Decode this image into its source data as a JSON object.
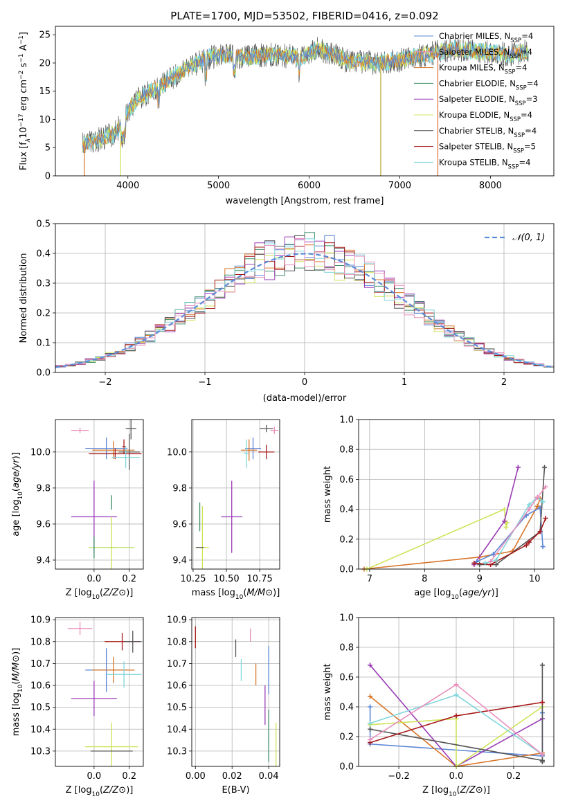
{
  "title": "PLATE=1700, MJD=53502, FIBERID=0416, z=0.092",
  "colors": [
    "#5b86d6",
    "#d8762a",
    "#8b6a1c",
    "#3f8f68",
    "#9a3bb5",
    "#cfe35a",
    "#555555",
    "#a61818",
    "#7fd6dc",
    "#e88fbc",
    "#b5e05a"
  ],
  "chart_data": [
    {
      "id": "spectrum",
      "type": "line",
      "title": "PLATE=1700, MJD=53502, FIBERID=0416, z=0.092",
      "xlabel": "wavelength [Angstrom, rest frame]",
      "ylabel": "Flux [f$_\\lambda$10$^{-17}$ erg cm$^{-2}$ s$^{-1}$ A$^{-1}$]",
      "ylabel_parts": [
        "Flux [f",
        "λ",
        "10",
        "−17",
        " erg cm",
        "−2",
        " s",
        "−1",
        " A",
        "−1",
        "]"
      ],
      "xlim": [
        3200,
        8700
      ],
      "ylim": [
        0,
        26.5
      ],
      "xticks": [
        "4000",
        "5000",
        "6000",
        "7000",
        "8000"
      ],
      "xtick_values": [
        4000,
        5000,
        6000,
        7000,
        8000
      ],
      "yticks": [
        "0",
        "5",
        "10",
        "15",
        "20",
        "25"
      ],
      "ytick_values": [
        0,
        5,
        10,
        15,
        20,
        25
      ],
      "continuum": [
        [
          3500,
          5.5
        ],
        [
          3700,
          6.5
        ],
        [
          3850,
          7.5
        ],
        [
          3950,
          9.5
        ],
        [
          4000,
          11.5
        ],
        [
          4100,
          13.5
        ],
        [
          4300,
          15.5
        ],
        [
          4500,
          17.5
        ],
        [
          4700,
          19.5
        ],
        [
          4900,
          21
        ],
        [
          5100,
          21.5
        ],
        [
          5300,
          21
        ],
        [
          5600,
          21.5
        ],
        [
          5900,
          21
        ],
        [
          6100,
          22.5
        ],
        [
          6400,
          20.5
        ],
        [
          6700,
          20
        ],
        [
          7000,
          20.5
        ],
        [
          7300,
          21.5
        ],
        [
          7600,
          22.5
        ],
        [
          7900,
          22
        ],
        [
          8200,
          21.5
        ],
        [
          8400,
          22
        ]
      ],
      "spikes": [
        {
          "x": 6790,
          "color": "#b5a32a"
        },
        {
          "x": 7420,
          "color": "#e06a3a"
        },
        {
          "x": 3920,
          "color": "#cfe35a"
        },
        {
          "x": 3520,
          "color": "#d8762a"
        }
      ],
      "legend": [
        {
          "model": "Chabrier MILES",
          "n": "4",
          "color": "#5b86d6"
        },
        {
          "model": "Salpeter MILES",
          "n": "4",
          "color": "#e88fbc"
        },
        {
          "model": "Kroupa MILES",
          "n": "4",
          "color": "#d8762a"
        },
        {
          "model": "Chabrier ELODIE",
          "n": "4",
          "color": "#3f8f68"
        },
        {
          "model": "Salpeter ELODIE",
          "n": "3",
          "color": "#9a3bb5"
        },
        {
          "model": "Kroupa ELODIE",
          "n": "4",
          "color": "#cfe35a"
        },
        {
          "model": "Chabrier STELIB",
          "n": "4",
          "color": "#555555"
        },
        {
          "model": "Salpeter STELIB",
          "n": "5",
          "color": "#a61818"
        },
        {
          "model": "Kroupa STELIB",
          "n": "4",
          "color": "#7fd6dc"
        }
      ],
      "legend_nssp_prefix": "N",
      "legend_nssp_sub": "SSP",
      "legend_placement": "upper-right",
      "grid": false
    },
    {
      "id": "residuals",
      "type": "histogram",
      "xlabel": "(data-model)/error",
      "ylabel": "Normed distribution",
      "xlim": [
        -2.5,
        2.5
      ],
      "ylim": [
        0,
        0.5
      ],
      "xticks": [
        "−2",
        "−1",
        "0",
        "1",
        "2"
      ],
      "xtick_values": [
        -2,
        -1,
        0,
        1,
        2
      ],
      "yticks": [
        "0.0",
        "0.1",
        "0.2",
        "0.3",
        "0.4",
        "0.5"
      ],
      "ytick_values": [
        0,
        0.1,
        0.2,
        0.3,
        0.4,
        0.5
      ],
      "bin_width": 0.1,
      "gaussian_label": "𝒩(0, 1)",
      "gaussian_color": "#5b8bd9",
      "legend_placement": "upper-right",
      "grid": true
    },
    {
      "id": "age_vs_Z",
      "type": "errorbar",
      "xlabel": "Z [log10(Z/Z⊙)]",
      "ylabel": "age  [log10(age/yr)]",
      "xlim": [
        -0.22,
        0.28
      ],
      "ylim": [
        9.35,
        10.18
      ],
      "xticks": [
        "0.0",
        "0.2"
      ],
      "xtick_values": [
        0,
        0.2
      ],
      "yticks": [
        "9.4",
        "9.6",
        "9.8",
        "10.0"
      ],
      "ytick_values": [
        9.4,
        9.6,
        9.8,
        10.0
      ],
      "grid": true,
      "points": [
        {
          "x": -0.08,
          "y": 10.12,
          "xerr": 0.05,
          "yerr": 0.015,
          "color": "#e88fbc"
        },
        {
          "x": 0.21,
          "y": 10.13,
          "xerr": 0.03,
          "yerr": 0.06,
          "color": "#555555"
        },
        {
          "x": 0.17,
          "y": 10.03,
          "xerr": 0.01,
          "yerr": 0.04,
          "color": "#a61818"
        },
        {
          "x": 0.07,
          "y": 10.02,
          "xerr": 0.12,
          "yerr": 0.06,
          "color": "#5b86d6"
        },
        {
          "x": 0.11,
          "y": 10.01,
          "xerr": 0.12,
          "yerr": 0.05,
          "color": "#d8762a"
        },
        {
          "x": 0.2,
          "y": 10.0,
          "xerr": 0.06,
          "yerr": 0.1,
          "color": "#555555"
        },
        {
          "x": 0.12,
          "y": 9.99,
          "xerr": 0.15,
          "yerr": 0.03,
          "color": "#a61818"
        },
        {
          "x": 0.18,
          "y": 9.97,
          "xerr": 0.08,
          "yerr": 0.06,
          "color": "#7fd6dc"
        },
        {
          "x": 0.1,
          "y": 9.72,
          "xerr": 0.0,
          "yerr": 0.04,
          "color": "#3f8f68"
        },
        {
          "x": 0.0,
          "y": 9.64,
          "xerr": 0.13,
          "yerr": 0.2,
          "color": "#9a3bb5"
        },
        {
          "x": 0.1,
          "y": 9.47,
          "xerr": 0.02,
          "yerr": 0.17,
          "color": "#cfe35a"
        },
        {
          "x": 0.1,
          "y": 9.47,
          "xerr": 0.13,
          "yerr": 0.0,
          "color": "#b5e05a"
        },
        {
          "x": 0.0,
          "y": 9.47,
          "xerr": 0.0,
          "yerr": 0.06,
          "color": "#3f8f68"
        }
      ]
    },
    {
      "id": "age_vs_mass",
      "type": "errorbar",
      "xlabel": "mass [log10(M/M⊙)]",
      "xlim": [
        10.24,
        10.9
      ],
      "ylim": [
        9.35,
        10.18
      ],
      "xticks": [
        "10.25",
        "10.50",
        "10.75"
      ],
      "xtick_values": [
        10.25,
        10.5,
        10.75
      ],
      "yticks": [
        "9.4",
        "9.6",
        "9.8",
        "10.0"
      ],
      "ytick_values": [
        9.4,
        9.6,
        9.8,
        10.0
      ],
      "grid": true,
      "points": [
        {
          "x": 10.86,
          "y": 10.12,
          "xerr": 0.03,
          "yerr": 0.02,
          "color": "#e88fbc"
        },
        {
          "x": 10.8,
          "y": 10.13,
          "xerr": 0.05,
          "yerr": 0.02,
          "color": "#555555"
        },
        {
          "x": 10.8,
          "y": 10.0,
          "xerr": 0.06,
          "yerr": 0.04,
          "color": "#a61818"
        },
        {
          "x": 10.7,
          "y": 10.02,
          "xerr": 0.06,
          "yerr": 0.06,
          "color": "#5b86d6"
        },
        {
          "x": 10.67,
          "y": 10.01,
          "xerr": 0.06,
          "yerr": 0.06,
          "color": "#d8762a"
        },
        {
          "x": 10.65,
          "y": 9.99,
          "xerr": 0.02,
          "yerr": 0.08,
          "color": "#7fd6dc"
        },
        {
          "x": 10.3,
          "y": 9.64,
          "xerr": 0.0,
          "yerr": 0.08,
          "color": "#3f8f68"
        },
        {
          "x": 10.54,
          "y": 9.64,
          "xerr": 0.08,
          "yerr": 0.2,
          "color": "#9a3bb5"
        },
        {
          "x": 10.32,
          "y": 9.47,
          "xerr": 0.05,
          "yerr": 0.23,
          "color": "#cfe35a"
        },
        {
          "x": 10.3,
          "y": 9.47,
          "xerr": 0.03,
          "yerr": 0.0,
          "color": "#555555"
        }
      ]
    },
    {
      "id": "weight_vs_age",
      "type": "line",
      "xlabel": "age  [log10(age/yr)]",
      "ylabel": "mass weight",
      "xlim": [
        6.8,
        10.35
      ],
      "ylim": [
        0,
        1
      ],
      "xticks": [
        "7",
        "8",
        "9",
        "10"
      ],
      "xtick_values": [
        7,
        8,
        9,
        10
      ],
      "yticks": [
        "0.0",
        "0.2",
        "0.4",
        "0.6",
        "0.8",
        "1.0"
      ],
      "ytick_values": [
        0,
        0.2,
        0.4,
        0.6,
        0.8,
        1.0
      ],
      "grid": true,
      "series": [
        {
          "color": "#d8762a",
          "x": [
            6.9,
            9.0,
            9.6,
            10.05,
            10.1
          ],
          "y": [
            0.0,
            0.08,
            0.12,
            0.42,
            0.47
          ]
        },
        {
          "color": "#cfe35a",
          "x": [
            6.95,
            9.45,
            9.48,
            9.5
          ],
          "y": [
            0.0,
            0.4,
            0.28,
            0.31
          ]
        },
        {
          "color": "#9a3bb5",
          "x": [
            8.9,
            9.45,
            9.7
          ],
          "y": [
            0.03,
            0.32,
            0.68
          ]
        },
        {
          "color": "#5b86d6",
          "x": [
            8.95,
            9.25,
            9.85,
            10.1,
            10.15
          ],
          "y": [
            0.05,
            0.1,
            0.36,
            0.41,
            0.15
          ]
        },
        {
          "color": "#555555",
          "x": [
            9.0,
            9.3,
            10.1,
            10.18
          ],
          "y": [
            0.03,
            0.03,
            0.25,
            0.68
          ]
        },
        {
          "color": "#a61818",
          "x": [
            8.9,
            9.2,
            9.85,
            9.9,
            10.1,
            10.2
          ],
          "y": [
            0.04,
            0.03,
            0.16,
            0.18,
            0.25,
            0.34
          ]
        },
        {
          "color": "#7fd6dc",
          "x": [
            9.1,
            9.3,
            9.9,
            10.05,
            10.15
          ],
          "y": [
            0.04,
            0.06,
            0.43,
            0.48,
            0.45
          ]
        },
        {
          "color": "#e88fbc",
          "x": [
            9.2,
            9.9,
            10.05,
            10.2
          ],
          "y": [
            0.05,
            0.4,
            0.48,
            0.55
          ]
        }
      ]
    },
    {
      "id": "mass_vs_Z",
      "type": "errorbar",
      "xlabel": "Z [log10(Z/Z⊙)]",
      "ylabel": "mass [log10(M/M⊙)]",
      "xlim": [
        -0.22,
        0.28
      ],
      "ylim": [
        10.23,
        10.91
      ],
      "xticks": [
        "0.0",
        "0.2"
      ],
      "xtick_values": [
        0,
        0.2
      ],
      "yticks": [
        "10.3",
        "10.4",
        "10.5",
        "10.6",
        "10.7",
        "10.8",
        "10.9"
      ],
      "ytick_values": [
        10.3,
        10.4,
        10.5,
        10.6,
        10.7,
        10.8,
        10.9
      ],
      "grid": true,
      "points": [
        {
          "x": -0.08,
          "y": 10.86,
          "xerr": 0.07,
          "yerr": 0.03,
          "color": "#e88fbc"
        },
        {
          "x": 0.16,
          "y": 10.8,
          "xerr": 0.1,
          "yerr": 0.04,
          "color": "#a61818"
        },
        {
          "x": 0.22,
          "y": 10.8,
          "xerr": 0.05,
          "yerr": 0.05,
          "color": "#555555"
        },
        {
          "x": 0.07,
          "y": 10.67,
          "xerr": 0.12,
          "yerr": 0.1,
          "color": "#5b86d6"
        },
        {
          "x": 0.11,
          "y": 10.67,
          "xerr": 0.12,
          "yerr": 0.06,
          "color": "#d8762a"
        },
        {
          "x": 0.17,
          "y": 10.65,
          "xerr": 0.1,
          "yerr": 0.06,
          "color": "#7fd6dc"
        },
        {
          "x": 0.0,
          "y": 10.54,
          "xerr": 0.13,
          "yerr": 0.08,
          "color": "#9a3bb5"
        },
        {
          "x": 0.1,
          "y": 10.32,
          "xerr": 0.15,
          "yerr": 0.11,
          "color": "#cfe35a"
        },
        {
          "x": 0.1,
          "y": 10.3,
          "xerr": 0.12,
          "yerr": 0.0,
          "color": "#555555"
        }
      ]
    },
    {
      "id": "mass_vs_ebv",
      "type": "errorbar",
      "xlabel": "E(B-V)",
      "xlim": [
        -0.002,
        0.046
      ],
      "ylim": [
        10.23,
        10.91
      ],
      "xticks": [
        "0.00",
        "0.02",
        "0.04"
      ],
      "xtick_values": [
        0,
        0.02,
        0.04
      ],
      "yticks": [
        "10.3",
        "10.4",
        "10.5",
        "10.6",
        "10.7",
        "10.8",
        "10.9"
      ],
      "ytick_values": [
        10.3,
        10.4,
        10.5,
        10.6,
        10.7,
        10.8,
        10.9
      ],
      "grid": true,
      "points": [
        {
          "x": 0.0,
          "y": 10.82,
          "xerr": 0,
          "yerr": 0.05,
          "color": "#a61818"
        },
        {
          "x": 0.022,
          "y": 10.77,
          "xerr": 0,
          "yerr": 0.04,
          "color": "#555555"
        },
        {
          "x": 0.03,
          "y": 10.83,
          "xerr": 0,
          "yerr": 0.03,
          "color": "#e88fbc"
        },
        {
          "x": 0.025,
          "y": 10.67,
          "xerr": 0,
          "yerr": 0.05,
          "color": "#7fd6dc"
        },
        {
          "x": 0.033,
          "y": 10.65,
          "xerr": 0,
          "yerr": 0.05,
          "color": "#d8762a"
        },
        {
          "x": 0.04,
          "y": 10.67,
          "xerr": 0,
          "yerr": 0.11,
          "color": "#5b86d6"
        },
        {
          "x": 0.038,
          "y": 10.51,
          "xerr": 0,
          "yerr": 0.09,
          "color": "#9a3bb5"
        },
        {
          "x": 0.04,
          "y": 10.37,
          "xerr": 0,
          "yerr": 0.12,
          "color": "#3f8f68"
        },
        {
          "x": 0.044,
          "y": 10.33,
          "xerr": 0,
          "yerr": 0.1,
          "color": "#cfe35a"
        }
      ]
    },
    {
      "id": "weight_vs_Z",
      "type": "line",
      "xlabel": "Z [log10(Z/Z⊙)]",
      "ylabel": "mass weight",
      "xlim": [
        -0.34,
        0.34
      ],
      "ylim": [
        0,
        1
      ],
      "xticks": [
        "−0.2",
        "0.0",
        "0.2"
      ],
      "xtick_values": [
        -0.2,
        0,
        0.2
      ],
      "yticks": [
        "0.0",
        "0.2",
        "0.4",
        "0.6",
        "0.8",
        "1.0"
      ],
      "ytick_values": [
        0,
        0.2,
        0.4,
        0.6,
        0.8,
        1.0
      ],
      "grid": true,
      "series": [
        {
          "color": "#5b86d6",
          "x": [
            -0.3,
            -0.3,
            0.3,
            0.3
          ],
          "y": [
            0.4,
            0.15,
            0.07,
            0.36
          ]
        },
        {
          "color": "#d8762a",
          "x": [
            -0.3,
            0.0,
            0.3
          ],
          "y": [
            0.47,
            0.0,
            0.09
          ]
        },
        {
          "color": "#9a3bb5",
          "x": [
            -0.3,
            0.0,
            0.3
          ],
          "y": [
            0.68,
            0.0,
            0.32
          ]
        },
        {
          "color": "#cfe35a",
          "x": [
            -0.3,
            0.0,
            0.0,
            0.3
          ],
          "y": [
            0.28,
            0.32,
            0.0,
            0.4
          ]
        },
        {
          "color": "#555555",
          "x": [
            -0.3,
            0.3,
            0.3,
            0.3
          ],
          "y": [
            0.25,
            0.04,
            0.68,
            0.03
          ]
        },
        {
          "color": "#a61818",
          "x": [
            -0.3,
            0.0,
            0.3
          ],
          "y": [
            0.16,
            0.34,
            0.43
          ]
        },
        {
          "color": "#7fd6dc",
          "x": [
            -0.3,
            0.0,
            0.3
          ],
          "y": [
            0.29,
            0.48,
            0.08
          ]
        },
        {
          "color": "#e88fbc",
          "x": [
            -0.3,
            0.0,
            0.3
          ],
          "y": [
            0.18,
            0.55,
            0.08
          ]
        }
      ]
    }
  ]
}
